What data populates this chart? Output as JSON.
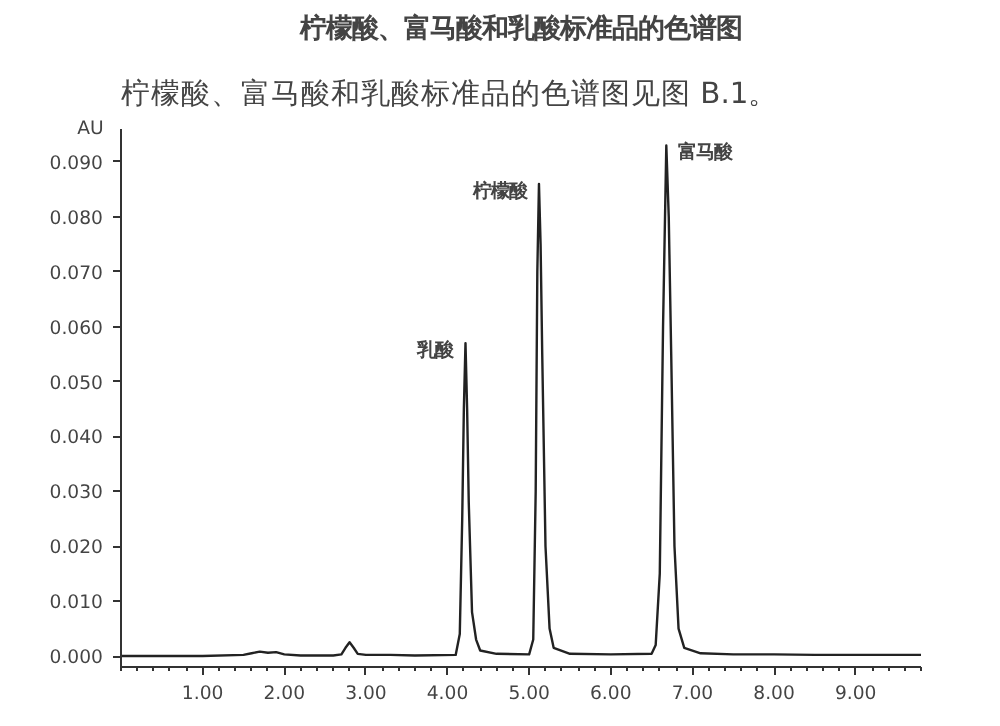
{
  "chart_data": {
    "type": "line",
    "title": "柠檬酸、富马酸和乳酸标准品的色谱图",
    "subtitle": "柠檬酸、富马酸和乳酸标准品的色谱图见图 B.1。",
    "ylabel": "AU",
    "series": [
      {
        "color": "#222222",
        "x": [
          0.0,
          0.5,
          1.0,
          1.5,
          1.6,
          1.7,
          1.8,
          1.9,
          2.0,
          2.2,
          2.6,
          2.7,
          2.75,
          2.8,
          2.85,
          2.9,
          3.0,
          3.3,
          3.6,
          4.1,
          4.15,
          4.18,
          4.2,
          4.22,
          4.24,
          4.26,
          4.3,
          4.35,
          4.4,
          4.6,
          5.0,
          5.05,
          5.08,
          5.1,
          5.12,
          5.14,
          5.16,
          5.2,
          5.25,
          5.3,
          5.5,
          6.0,
          6.5,
          6.55,
          6.6,
          6.64,
          6.68,
          6.71,
          6.74,
          6.78,
          6.83,
          6.9,
          7.1,
          7.5,
          8.0,
          8.5,
          9.0,
          9.5,
          9.8
        ],
        "values": [
          0.0,
          0.0,
          0.0,
          0.0002,
          0.0005,
          0.0008,
          0.0006,
          0.0007,
          0.0003,
          0.0001,
          0.0001,
          0.0003,
          0.0015,
          0.0025,
          0.0015,
          0.0004,
          0.0002,
          0.0002,
          0.0001,
          0.0002,
          0.004,
          0.025,
          0.045,
          0.057,
          0.045,
          0.028,
          0.008,
          0.003,
          0.001,
          0.0004,
          0.0003,
          0.003,
          0.03,
          0.07,
          0.086,
          0.075,
          0.055,
          0.02,
          0.005,
          0.0015,
          0.0004,
          0.0003,
          0.0004,
          0.002,
          0.015,
          0.06,
          0.093,
          0.08,
          0.055,
          0.02,
          0.005,
          0.0015,
          0.0005,
          0.0003,
          0.0003,
          0.0002,
          0.0002,
          0.0002,
          0.0002
        ]
      }
    ],
    "annotations": [
      {
        "text": "乳酸",
        "x": 4.22,
        "y": 0.057
      },
      {
        "text": "柠檬酸",
        "x": 5.12,
        "y": 0.086
      },
      {
        "text": "富马酸",
        "x": 6.68,
        "y": 0.093
      }
    ],
    "xlim": [
      0.0,
      9.8
    ],
    "ylim": [
      -0.002,
      0.096
    ],
    "xticks": [
      {
        "value": 1,
        "label": "1.00"
      },
      {
        "value": 2,
        "label": "2.00"
      },
      {
        "value": 3,
        "label": "3.00"
      },
      {
        "value": 4,
        "label": "4.00"
      },
      {
        "value": 5,
        "label": "5.00"
      },
      {
        "value": 6,
        "label": "6.00"
      },
      {
        "value": 7,
        "label": "7.00"
      },
      {
        "value": 8,
        "label": "8.00"
      },
      {
        "value": 9,
        "label": "9.00"
      }
    ],
    "yticks": [
      {
        "value": 0,
        "label": "0.000"
      },
      {
        "value": 0.01,
        "label": "0.010"
      },
      {
        "value": 0.02,
        "label": "0.020"
      },
      {
        "value": 0.03,
        "label": "0.030"
      },
      {
        "value": 0.04,
        "label": "0.040"
      },
      {
        "value": 0.05,
        "label": "0.050"
      },
      {
        "value": 0.06,
        "label": "0.060"
      },
      {
        "value": 0.07,
        "label": "0.070"
      },
      {
        "value": 0.08,
        "label": "0.080"
      },
      {
        "value": 0.09,
        "label": "0.090"
      }
    ],
    "grid": false,
    "line_style": "solid"
  }
}
